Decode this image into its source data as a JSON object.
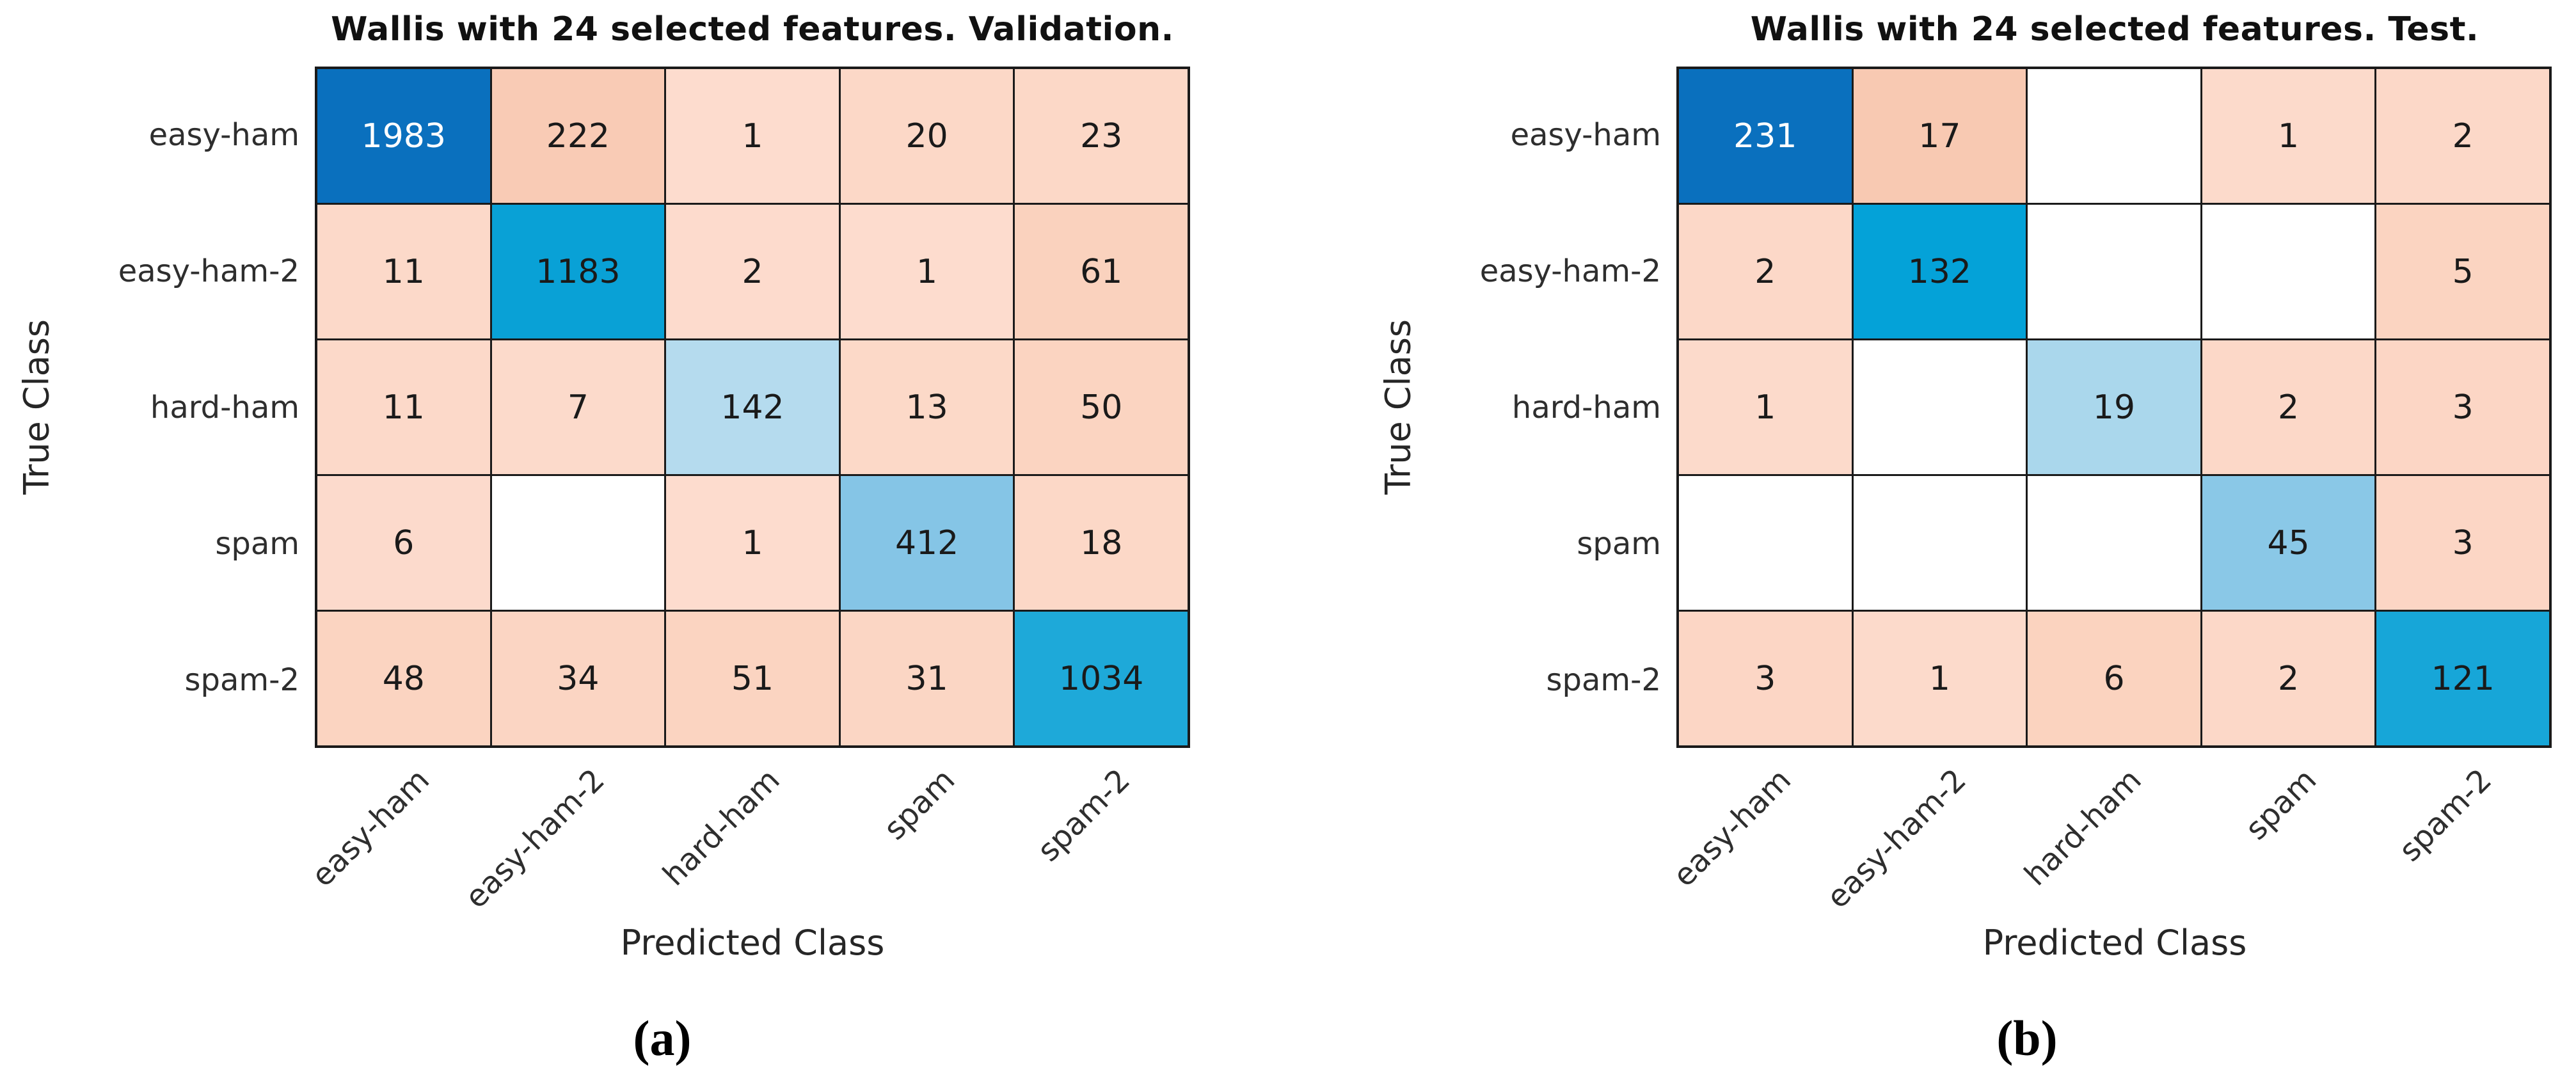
{
  "figure": {
    "y_axis_label": "True Class",
    "x_axis_label": "Predicted Class",
    "classes": [
      "easy-ham",
      "easy-ham-2",
      "hard-ham",
      "spam",
      "spam-2"
    ]
  },
  "panels": [
    {
      "key": "a",
      "title": "Wallis with 24 selected features. Validation.",
      "caption": "(a)",
      "cells": [
        [
          {
            "v": "1983",
            "bg": "#0a70be",
            "fg": "#ffffff"
          },
          {
            "v": "222",
            "bg": "#f9cbb5"
          },
          {
            "v": "1",
            "bg": "#fddcce"
          },
          {
            "v": "20",
            "bg": "#fcd8c7"
          },
          {
            "v": "23",
            "bg": "#fcd8c7"
          }
        ],
        [
          {
            "v": "11",
            "bg": "#fcd9c9"
          },
          {
            "v": "1183",
            "bg": "#09a1d6"
          },
          {
            "v": "2",
            "bg": "#fddbcd"
          },
          {
            "v": "1",
            "bg": "#fddcce"
          },
          {
            "v": "61",
            "bg": "#fad2be"
          }
        ],
        [
          {
            "v": "11",
            "bg": "#fcd9c9"
          },
          {
            "v": "7",
            "bg": "#fcdacb"
          },
          {
            "v": "142",
            "bg": "#b5dbee"
          },
          {
            "v": "13",
            "bg": "#fcd9c8"
          },
          {
            "v": "50",
            "bg": "#fbd4c1"
          }
        ],
        [
          {
            "v": "6",
            "bg": "#fcdacc"
          },
          {
            "v": "",
            "bg": "#ffffff"
          },
          {
            "v": "1",
            "bg": "#fddcce"
          },
          {
            "v": "412",
            "bg": "#85c5e6"
          },
          {
            "v": "18",
            "bg": "#fcd8c7"
          }
        ],
        [
          {
            "v": "48",
            "bg": "#fbd4c1"
          },
          {
            "v": "34",
            "bg": "#fbd5c3"
          },
          {
            "v": "51",
            "bg": "#fbd4c1"
          },
          {
            "v": "31",
            "bg": "#fbd6c4"
          },
          {
            "v": "1034",
            "bg": "#1ea9d9"
          }
        ]
      ]
    },
    {
      "key": "b",
      "title": "Wallis with 24 selected features. Test.",
      "caption": "(b)",
      "cells": [
        [
          {
            "v": "231",
            "bg": "#0a70be",
            "fg": "#ffffff"
          },
          {
            "v": "17",
            "bg": "#f8c9b2"
          },
          {
            "v": "",
            "bg": "#ffffff"
          },
          {
            "v": "1",
            "bg": "#fcdacb"
          },
          {
            "v": "2",
            "bg": "#fcd8c8"
          }
        ],
        [
          {
            "v": "2",
            "bg": "#fcd8c8"
          },
          {
            "v": "132",
            "bg": "#04a2d8"
          },
          {
            "v": "",
            "bg": "#ffffff"
          },
          {
            "v": "",
            "bg": "#ffffff"
          },
          {
            "v": "5",
            "bg": "#fbd4c1"
          }
        ],
        [
          {
            "v": "1",
            "bg": "#fcdacb"
          },
          {
            "v": "",
            "bg": "#ffffff"
          },
          {
            "v": "19",
            "bg": "#aad7ec"
          },
          {
            "v": "2",
            "bg": "#fcd8c8"
          },
          {
            "v": "3",
            "bg": "#fcd6c5"
          }
        ],
        [
          {
            "v": "",
            "bg": "#ffffff"
          },
          {
            "v": "",
            "bg": "#ffffff"
          },
          {
            "v": "",
            "bg": "#ffffff"
          },
          {
            "v": "45",
            "bg": "#8ac8e7"
          },
          {
            "v": "3",
            "bg": "#fcd6c5"
          }
        ],
        [
          {
            "v": "3",
            "bg": "#fcd6c5"
          },
          {
            "v": "1",
            "bg": "#fcdacb"
          },
          {
            "v": "6",
            "bg": "#fbd3bf"
          },
          {
            "v": "2",
            "bg": "#fcd8c8"
          },
          {
            "v": "121",
            "bg": "#17a6d8"
          }
        ]
      ]
    }
  ],
  "chart_data": [
    {
      "type": "heatmap",
      "title": "Wallis with 24 selected features. Validation.",
      "xlabel": "Predicted Class",
      "ylabel": "True Class",
      "x_categories": [
        "easy-ham",
        "easy-ham-2",
        "hard-ham",
        "spam",
        "spam-2"
      ],
      "y_categories": [
        "easy-ham",
        "easy-ham-2",
        "hard-ham",
        "spam",
        "spam-2"
      ],
      "values": [
        [
          1983,
          222,
          1,
          20,
          23
        ],
        [
          11,
          1183,
          2,
          1,
          61
        ],
        [
          11,
          7,
          142,
          13,
          50
        ],
        [
          6,
          0,
          1,
          412,
          18
        ],
        [
          48,
          34,
          51,
          31,
          1034
        ]
      ],
      "caption": "(a)",
      "legend": "none",
      "notes": "confusion matrix; blank cells are zero; diagonal shaded blue, off-diagonal shaded salmon by magnitude"
    },
    {
      "type": "heatmap",
      "title": "Wallis with 24 selected features. Test.",
      "xlabel": "Predicted Class",
      "ylabel": "True Class",
      "x_categories": [
        "easy-ham",
        "easy-ham-2",
        "hard-ham",
        "spam",
        "spam-2"
      ],
      "y_categories": [
        "easy-ham",
        "easy-ham-2",
        "hard-ham",
        "spam",
        "spam-2"
      ],
      "values": [
        [
          231,
          17,
          0,
          1,
          2
        ],
        [
          2,
          132,
          0,
          0,
          5
        ],
        [
          1,
          0,
          19,
          2,
          3
        ],
        [
          0,
          0,
          0,
          45,
          3
        ],
        [
          3,
          1,
          6,
          2,
          121
        ]
      ],
      "caption": "(b)",
      "legend": "none",
      "notes": "confusion matrix; blank cells are zero; diagonal shaded blue, off-diagonal shaded salmon by magnitude"
    }
  ],
  "colors": {
    "diagonal_max_blue": "#0a70be",
    "diagonal_mid_blue": "#09a1d6",
    "diagonal_light_blue": "#b5dbee",
    "off_diagonal_max_salmon": "#f9cbb5",
    "off_diagonal_light_salmon": "#fddcce",
    "grid_line": "#1a1a1a",
    "cell_text_dark": "#1a1a1a",
    "cell_text_light": "#ffffff"
  }
}
